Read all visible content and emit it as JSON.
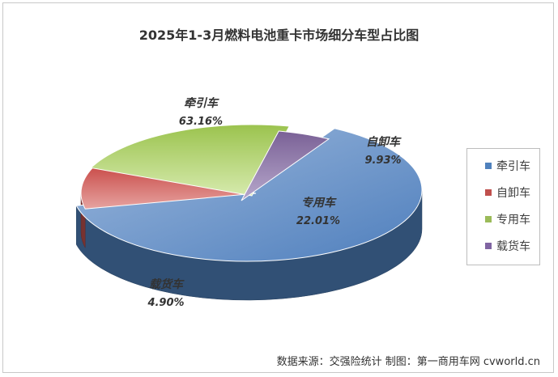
{
  "chart_data": {
    "type": "pie",
    "title": "2025年1-3月燃料电池重卡市场细分车型占比图",
    "categories": [
      "牵引车",
      "自卸车",
      "专用车",
      "载货车"
    ],
    "values": [
      63.16,
      9.93,
      22.01,
      4.9
    ],
    "value_labels": [
      "63.16%",
      "9.93%",
      "22.01%",
      "4.90%"
    ],
    "colors": [
      "#4f81bd",
      "#c0504d",
      "#9bbb59",
      "#8064a2"
    ],
    "legend_position": "right",
    "style": "3d-exploded"
  },
  "footer": "数据来源：交强险统计   制图：第一商用车网 cvworld.cn"
}
